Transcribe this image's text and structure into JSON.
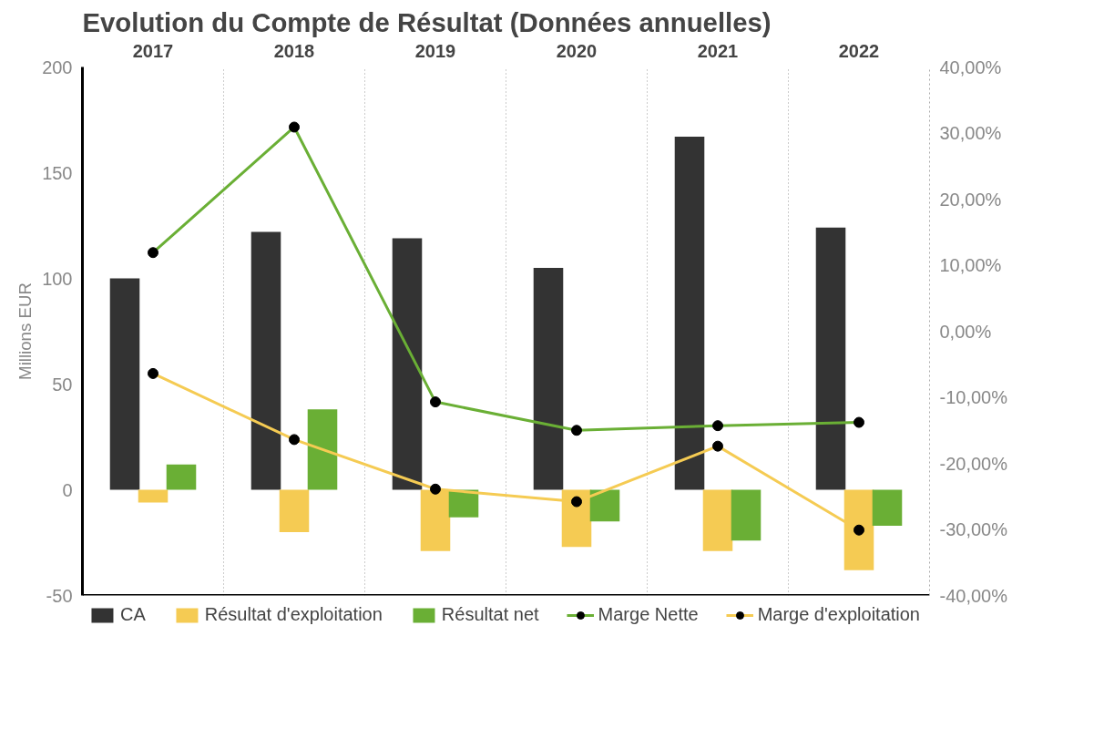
{
  "chart_data": {
    "type": "bar",
    "title": "Evolution du Compte de Résultat (Données annuelles)",
    "ylabel": "Millions EUR",
    "categories": [
      "2017",
      "2018",
      "2019",
      "2020",
      "2021",
      "2022"
    ],
    "series": [
      {
        "name": "CA",
        "color": "#333333",
        "values": [
          100,
          122,
          119,
          105,
          167,
          124
        ]
      },
      {
        "name": "Résultat d'exploitation",
        "color": "#f5cb53",
        "values": [
          -6,
          -20,
          -29,
          -27,
          -29,
          -38
        ]
      },
      {
        "name": "Résultat net",
        "color": "#6aaf35",
        "values": [
          12,
          38,
          -13,
          -15,
          -24,
          -17
        ]
      },
      {
        "name": "Marge Nette",
        "type": "line",
        "axis": "y2",
        "color": "#6aaf35",
        "values": [
          11.9,
          30.9,
          -10.7,
          -15,
          -14.3,
          -13.8
        ]
      },
      {
        "name": "Marge d'exploitation",
        "type": "line",
        "axis": "y2",
        "color": "#f5cb53",
        "values": [
          -6.4,
          -16.4,
          -23.9,
          -25.8,
          -17.4,
          -30.1
        ]
      }
    ],
    "ylim": [
      -50,
      200
    ],
    "yticks": [
      -50,
      0,
      50,
      100,
      150,
      200
    ],
    "y2lim": [
      -40,
      40
    ],
    "y2ticks": [
      {
        "value": -40,
        "label": "-40,00%"
      },
      {
        "value": -30,
        "label": "-30,00%"
      },
      {
        "value": -20,
        "label": "-20,00%"
      },
      {
        "value": -10,
        "label": "-10,00%"
      },
      {
        "value": 0,
        "label": "0,00%"
      },
      {
        "value": 10,
        "label": "10,00%"
      },
      {
        "value": 20,
        "label": "20,00%"
      },
      {
        "value": 30,
        "label": "30,00%"
      },
      {
        "value": 40,
        "label": "40,00%"
      }
    ],
    "grid": "x",
    "legend": "bottom",
    "marker": "circle"
  }
}
